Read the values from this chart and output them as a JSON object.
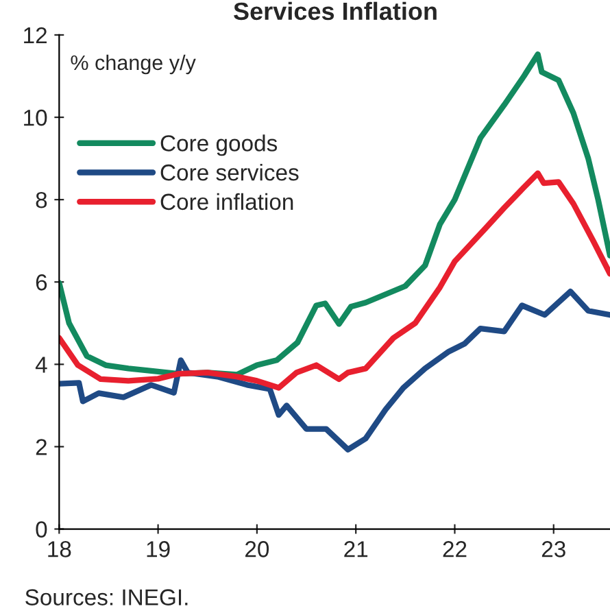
{
  "chart_data": {
    "type": "line",
    "title": "Services Inflation",
    "xlim": [
      18,
      23.57
    ],
    "ylim": [
      0,
      12
    ],
    "xticks": [
      18,
      19,
      20,
      21,
      22,
      23
    ],
    "yticks": [
      0,
      2,
      4,
      6,
      8,
      10,
      12
    ],
    "grid": false,
    "legend": "top left",
    "marker": "none",
    "line_style": "solid",
    "annotations": [
      "% change y/y",
      "Sources: INEGI."
    ],
    "series": [
      {
        "name": "Core goods",
        "color": "#138a5f",
        "x": [
          18.0,
          18.1,
          18.28,
          18.47,
          18.7,
          18.9,
          19.21,
          19.5,
          19.8,
          20.0,
          20.2,
          20.41,
          20.6,
          20.69,
          20.83,
          20.95,
          21.1,
          21.3,
          21.5,
          21.7,
          21.85,
          22.0,
          22.26,
          22.5,
          22.7,
          22.84,
          22.88,
          23.05,
          23.2,
          23.35,
          23.45,
          23.57
        ],
        "values": [
          5.98,
          5.0,
          4.2,
          3.98,
          3.9,
          3.85,
          3.77,
          3.8,
          3.75,
          3.98,
          4.1,
          4.53,
          5.43,
          5.48,
          4.98,
          5.4,
          5.5,
          5.7,
          5.9,
          6.4,
          7.4,
          8.0,
          9.5,
          10.3,
          11.0,
          11.53,
          11.1,
          10.9,
          10.1,
          9.0,
          8.0,
          6.64
        ]
      },
      {
        "name": "Core services",
        "color": "#1f4a85",
        "x": [
          18.0,
          18.2,
          18.24,
          18.4,
          18.65,
          18.93,
          19.16,
          19.23,
          19.3,
          19.6,
          19.9,
          20.13,
          20.22,
          20.3,
          20.5,
          20.7,
          20.92,
          21.1,
          21.3,
          21.48,
          21.7,
          21.94,
          22.1,
          22.26,
          22.5,
          22.68,
          22.91,
          23.17,
          23.35,
          23.57
        ],
        "values": [
          3.53,
          3.55,
          3.1,
          3.3,
          3.2,
          3.5,
          3.31,
          4.1,
          3.8,
          3.7,
          3.5,
          3.4,
          2.77,
          3.0,
          2.43,
          2.43,
          1.93,
          2.2,
          2.9,
          3.43,
          3.9,
          4.31,
          4.5,
          4.87,
          4.8,
          5.43,
          5.2,
          5.77,
          5.3,
          5.2
        ]
      },
      {
        "name": "Core inflation",
        "color": "#e8202e",
        "x": [
          18.0,
          18.19,
          18.42,
          18.7,
          19.0,
          19.21,
          19.5,
          19.8,
          20.0,
          20.22,
          20.4,
          20.6,
          20.83,
          20.92,
          21.1,
          21.38,
          21.6,
          21.85,
          22.0,
          22.31,
          22.5,
          22.7,
          22.84,
          22.9,
          23.05,
          23.2,
          23.4,
          23.57
        ],
        "values": [
          4.64,
          3.98,
          3.64,
          3.6,
          3.65,
          3.77,
          3.8,
          3.7,
          3.6,
          3.43,
          3.8,
          3.98,
          3.64,
          3.8,
          3.9,
          4.64,
          5.0,
          5.87,
          6.5,
          7.3,
          7.8,
          8.3,
          8.64,
          8.4,
          8.43,
          7.9,
          7.0,
          6.2
        ]
      }
    ]
  }
}
